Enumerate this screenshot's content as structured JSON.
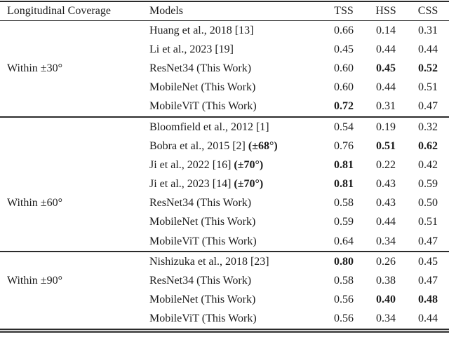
{
  "page": {
    "background": "#ffffff",
    "text_color": "#1c1c1c",
    "rule_color": "#2b2b2b"
  },
  "table": {
    "headers": {
      "coverage": "Longitudinal Coverage",
      "models": "Models",
      "tss": "TSS",
      "hss": "HSS",
      "css": "CSS"
    },
    "groups": [
      {
        "coverage": "Within ±30°",
        "rows": [
          {
            "model": "Huang et al., 2018 [13]",
            "tss": "0.66",
            "hss": "0.14",
            "css": "0.31"
          },
          {
            "model": "Li et al., 2023 [19]",
            "tss": "0.45",
            "hss": "0.44",
            "css": "0.44"
          },
          {
            "model": "ResNet34 (This Work)",
            "tss": "0.60",
            "hss": "0.45",
            "css": "0.52",
            "hss_b": true,
            "css_b": true
          },
          {
            "model": "MobileNet (This Work)",
            "tss": "0.60",
            "hss": "0.44",
            "css": "0.51"
          },
          {
            "model": "MobileViT (This Work)",
            "tss": "0.72",
            "hss": "0.31",
            "css": "0.47",
            "tss_b": true
          }
        ]
      },
      {
        "coverage": "Within ±60°",
        "rows": [
          {
            "model": "Bloomfield et al., 2012 [1]",
            "tss": "0.54",
            "hss": "0.19",
            "css": "0.32"
          },
          {
            "model": "Bobra et al., 2015 [2] ",
            "model_suffix": "(±68°)",
            "tss": "0.76",
            "hss": "0.51",
            "css": "0.62",
            "hss_b": true,
            "css_b": true
          },
          {
            "model": "Ji et al., 2022 [16] ",
            "model_suffix": "(±70°)",
            "tss": "0.81",
            "hss": "0.22",
            "css": "0.42",
            "tss_b": true
          },
          {
            "model": "Ji et al., 2023 [14] ",
            "model_suffix": "(±70°)",
            "tss": "0.81",
            "hss": "0.43",
            "css": "0.59",
            "tss_b": true
          },
          {
            "model": "ResNet34 (This Work)",
            "tss": "0.58",
            "hss": "0.43",
            "css": "0.50"
          },
          {
            "model": "MobileNet (This Work)",
            "tss": "0.59",
            "hss": "0.44",
            "css": "0.51"
          },
          {
            "model": "MobileViT (This Work)",
            "tss": "0.64",
            "hss": "0.34",
            "css": "0.47"
          }
        ]
      },
      {
        "coverage": "Within ±90°",
        "rows": [
          {
            "model": "Nishizuka et al., 2018 [23]",
            "tss": "0.80",
            "hss": "0.26",
            "css": "0.45",
            "tss_b": true
          },
          {
            "model": "ResNet34 (This Work)",
            "tss": "0.58",
            "hss": "0.38",
            "css": "0.47"
          },
          {
            "model": "MobileNet (This Work)",
            "tss": "0.56",
            "hss": "0.40",
            "css": "0.48",
            "hss_b": true,
            "css_b": true
          },
          {
            "model": "MobileViT (This Work)",
            "tss": "0.56",
            "hss": "0.34",
            "css": "0.44"
          }
        ]
      }
    ]
  }
}
